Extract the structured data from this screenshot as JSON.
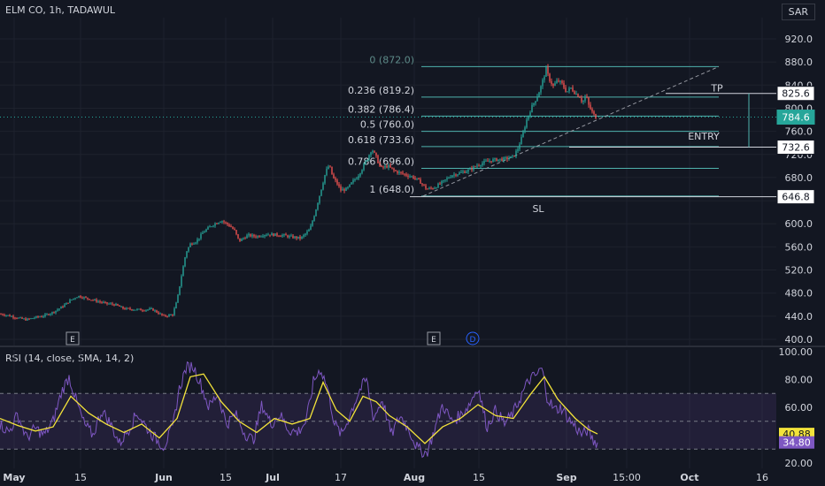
{
  "header": {
    "title": "ELM CO, 1h, TADAWUL",
    "currency": "SAR"
  },
  "indicator": {
    "label": "RSI (14, close, SMA, 14, 2)"
  },
  "chart_data": [
    {
      "type": "candlestick",
      "yticks": [
        400,
        440,
        480,
        520,
        560,
        600,
        640,
        680,
        720,
        760,
        800,
        840,
        880,
        920
      ],
      "ylim": [
        390,
        945
      ],
      "xticks": [
        "May",
        "15",
        "Jun",
        "15",
        "Jul",
        "17",
        "Aug",
        "15",
        "Sep",
        "15:00",
        "Oct",
        "16"
      ],
      "price_path": [
        [
          0,
          444
        ],
        [
          10,
          441
        ],
        [
          20,
          437
        ],
        [
          30,
          434
        ],
        [
          40,
          438
        ],
        [
          50,
          441
        ],
        [
          60,
          447
        ],
        [
          70,
          456
        ],
        [
          80,
          468
        ],
        [
          88,
          475
        ],
        [
          98,
          471
        ],
        [
          110,
          466
        ],
        [
          120,
          462
        ],
        [
          130,
          460
        ],
        [
          140,
          453
        ],
        [
          150,
          452
        ],
        [
          160,
          451
        ],
        [
          172,
          452
        ],
        [
          185,
          440
        ],
        [
          195,
          443
        ],
        [
          200,
          467
        ],
        [
          205,
          510
        ],
        [
          210,
          550
        ],
        [
          215,
          565
        ],
        [
          222,
          570
        ],
        [
          230,
          586
        ],
        [
          240,
          598
        ],
        [
          250,
          606
        ],
        [
          260,
          596
        ],
        [
          265,
          588
        ],
        [
          270,
          570
        ],
        [
          280,
          580
        ],
        [
          290,
          578
        ],
        [
          300,
          582
        ],
        [
          310,
          581
        ],
        [
          320,
          580
        ],
        [
          330,
          577
        ],
        [
          340,
          575
        ],
        [
          350,
          590
        ],
        [
          356,
          620
        ],
        [
          362,
          655
        ],
        [
          368,
          690
        ],
        [
          372,
          702
        ],
        [
          376,
          680
        ],
        [
          380,
          672
        ],
        [
          385,
          658
        ],
        [
          392,
          660
        ],
        [
          398,
          672
        ],
        [
          404,
          682
        ],
        [
          410,
          698
        ],
        [
          416,
          716
        ],
        [
          420,
          730
        ],
        [
          425,
          715
        ],
        [
          430,
          696
        ],
        [
          438,
          700
        ],
        [
          445,
          692
        ],
        [
          452,
          688
        ],
        [
          460,
          684
        ],
        [
          468,
          680
        ],
        [
          475,
          672
        ],
        [
          482,
          660
        ],
        [
          490,
          662
        ],
        [
          500,
          672
        ],
        [
          510,
          684
        ],
        [
          520,
          688
        ],
        [
          530,
          693
        ],
        [
          540,
          702
        ],
        [
          550,
          708
        ],
        [
          560,
          711
        ],
        [
          570,
          712
        ],
        [
          580,
          716
        ],
        [
          585,
          730
        ],
        [
          590,
          752
        ],
        [
          595,
          780
        ],
        [
          600,
          800
        ],
        [
          605,
          815
        ],
        [
          610,
          832
        ],
        [
          614,
          852
        ],
        [
          617,
          868
        ],
        [
          620,
          852
        ],
        [
          625,
          838
        ],
        [
          630,
          848
        ],
        [
          635,
          842
        ],
        [
          640,
          828
        ],
        [
          645,
          835
        ],
        [
          650,
          826
        ],
        [
          655,
          820
        ],
        [
          658,
          810
        ],
        [
          662,
          822
        ],
        [
          665,
          805
        ],
        [
          670,
          790
        ],
        [
          673,
          784.6
        ]
      ],
      "fibonacci": [
        {
          "label": "0 (872.0)",
          "price": 872.0
        },
        {
          "label": "0.236 (819.2)",
          "price": 819.2
        },
        {
          "label": "0.382 (786.4)",
          "price": 786.4
        },
        {
          "label": "0.5 (760.0)",
          "price": 760.0
        },
        {
          "label": "0.618 (733.6)",
          "price": 733.6
        },
        {
          "label": "0.786 (696.0)",
          "price": 696.0
        },
        {
          "label": "1 (648.0)",
          "price": 648.0
        }
      ],
      "annotations": [
        {
          "text": "TP",
          "price": 835
        },
        {
          "text": "ENTRY",
          "price": 752
        },
        {
          "text": "SL",
          "price": 626
        }
      ],
      "price_labels": [
        {
          "text": "825.6",
          "price": 825.6,
          "style": "white"
        },
        {
          "text": "784.6",
          "price": 784.6,
          "style": "green"
        },
        {
          "text": "732.6",
          "price": 732.6,
          "style": "white"
        },
        {
          "text": "646.8",
          "price": 646.8,
          "style": "white"
        }
      ],
      "event_markers": [
        "E",
        "E",
        "D"
      ]
    },
    {
      "type": "line",
      "name": "RSI",
      "yticks": [
        20,
        40,
        60,
        80,
        100
      ],
      "ylim": [
        20,
        100
      ],
      "bands": {
        "upper": 70,
        "middle": 50,
        "lower": 30
      },
      "rsi_path": [
        [
          0,
          48
        ],
        [
          10,
          42
        ],
        [
          20,
          55
        ],
        [
          30,
          38
        ],
        [
          40,
          45
        ],
        [
          50,
          40
        ],
        [
          60,
          50
        ],
        [
          70,
          72
        ],
        [
          78,
          82
        ],
        [
          86,
          65
        ],
        [
          95,
          48
        ],
        [
          105,
          40
        ],
        [
          115,
          58
        ],
        [
          125,
          48
        ],
        [
          135,
          34
        ],
        [
          145,
          44
        ],
        [
          155,
          56
        ],
        [
          165,
          46
        ],
        [
          175,
          38
        ],
        [
          185,
          32
        ],
        [
          195,
          45
        ],
        [
          202,
          72
        ],
        [
          210,
          88
        ],
        [
          218,
          90
        ],
        [
          226,
          78
        ],
        [
          236,
          60
        ],
        [
          246,
          70
        ],
        [
          256,
          48
        ],
        [
          266,
          55
        ],
        [
          276,
          42
        ],
        [
          286,
          36
        ],
        [
          296,
          62
        ],
        [
          306,
          48
        ],
        [
          316,
          55
        ],
        [
          326,
          44
        ],
        [
          336,
          42
        ],
        [
          346,
          50
        ],
        [
          354,
          78
        ],
        [
          362,
          88
        ],
        [
          370,
          74
        ],
        [
          378,
          48
        ],
        [
          386,
          40
        ],
        [
          396,
          56
        ],
        [
          406,
          72
        ],
        [
          414,
          80
        ],
        [
          422,
          52
        ],
        [
          432,
          66
        ],
        [
          442,
          40
        ],
        [
          452,
          54
        ],
        [
          462,
          44
        ],
        [
          472,
          30
        ],
        [
          482,
          27
        ],
        [
          490,
          42
        ],
        [
          500,
          62
        ],
        [
          510,
          50
        ],
        [
          520,
          54
        ],
        [
          530,
          62
        ],
        [
          540,
          75
        ],
        [
          550,
          46
        ],
        [
          560,
          58
        ],
        [
          570,
          48
        ],
        [
          580,
          56
        ],
        [
          590,
          70
        ],
        [
          598,
          80
        ],
        [
          606,
          83
        ],
        [
          612,
          88
        ],
        [
          618,
          68
        ],
        [
          626,
          58
        ],
        [
          634,
          60
        ],
        [
          642,
          52
        ],
        [
          650,
          46
        ],
        [
          658,
          40
        ],
        [
          664,
          44
        ],
        [
          670,
          36
        ],
        [
          675,
          34.8
        ]
      ],
      "ma_path": [
        [
          0,
          52
        ],
        [
          20,
          47
        ],
        [
          40,
          43
        ],
        [
          60,
          46
        ],
        [
          80,
          68
        ],
        [
          100,
          56
        ],
        [
          120,
          48
        ],
        [
          140,
          42
        ],
        [
          160,
          48
        ],
        [
          180,
          38
        ],
        [
          200,
          52
        ],
        [
          215,
          82
        ],
        [
          230,
          84
        ],
        [
          250,
          64
        ],
        [
          270,
          50
        ],
        [
          290,
          42
        ],
        [
          310,
          52
        ],
        [
          330,
          48
        ],
        [
          350,
          52
        ],
        [
          365,
          78
        ],
        [
          380,
          58
        ],
        [
          395,
          50
        ],
        [
          410,
          68
        ],
        [
          425,
          64
        ],
        [
          440,
          54
        ],
        [
          460,
          46
        ],
        [
          480,
          34
        ],
        [
          500,
          46
        ],
        [
          520,
          52
        ],
        [
          540,
          62
        ],
        [
          560,
          54
        ],
        [
          580,
          52
        ],
        [
          600,
          70
        ],
        [
          615,
          82
        ],
        [
          630,
          66
        ],
        [
          650,
          52
        ],
        [
          665,
          44
        ],
        [
          675,
          40.9
        ]
      ],
      "last_labels": [
        {
          "text": "40.88",
          "value": 40.88,
          "style": "yellow"
        },
        {
          "text": "34.80",
          "value": 34.8,
          "style": "purple"
        }
      ]
    }
  ],
  "colors": {
    "background": "#131722",
    "grid": "#1e222d",
    "text": "#d1d4dc",
    "up": "#26a69a",
    "down": "#ef5350",
    "fib": "#4fb3ad",
    "rsi": "#7e57c2",
    "rsi_ma": "#f3e33a",
    "band_fill": "#7e57c2"
  }
}
